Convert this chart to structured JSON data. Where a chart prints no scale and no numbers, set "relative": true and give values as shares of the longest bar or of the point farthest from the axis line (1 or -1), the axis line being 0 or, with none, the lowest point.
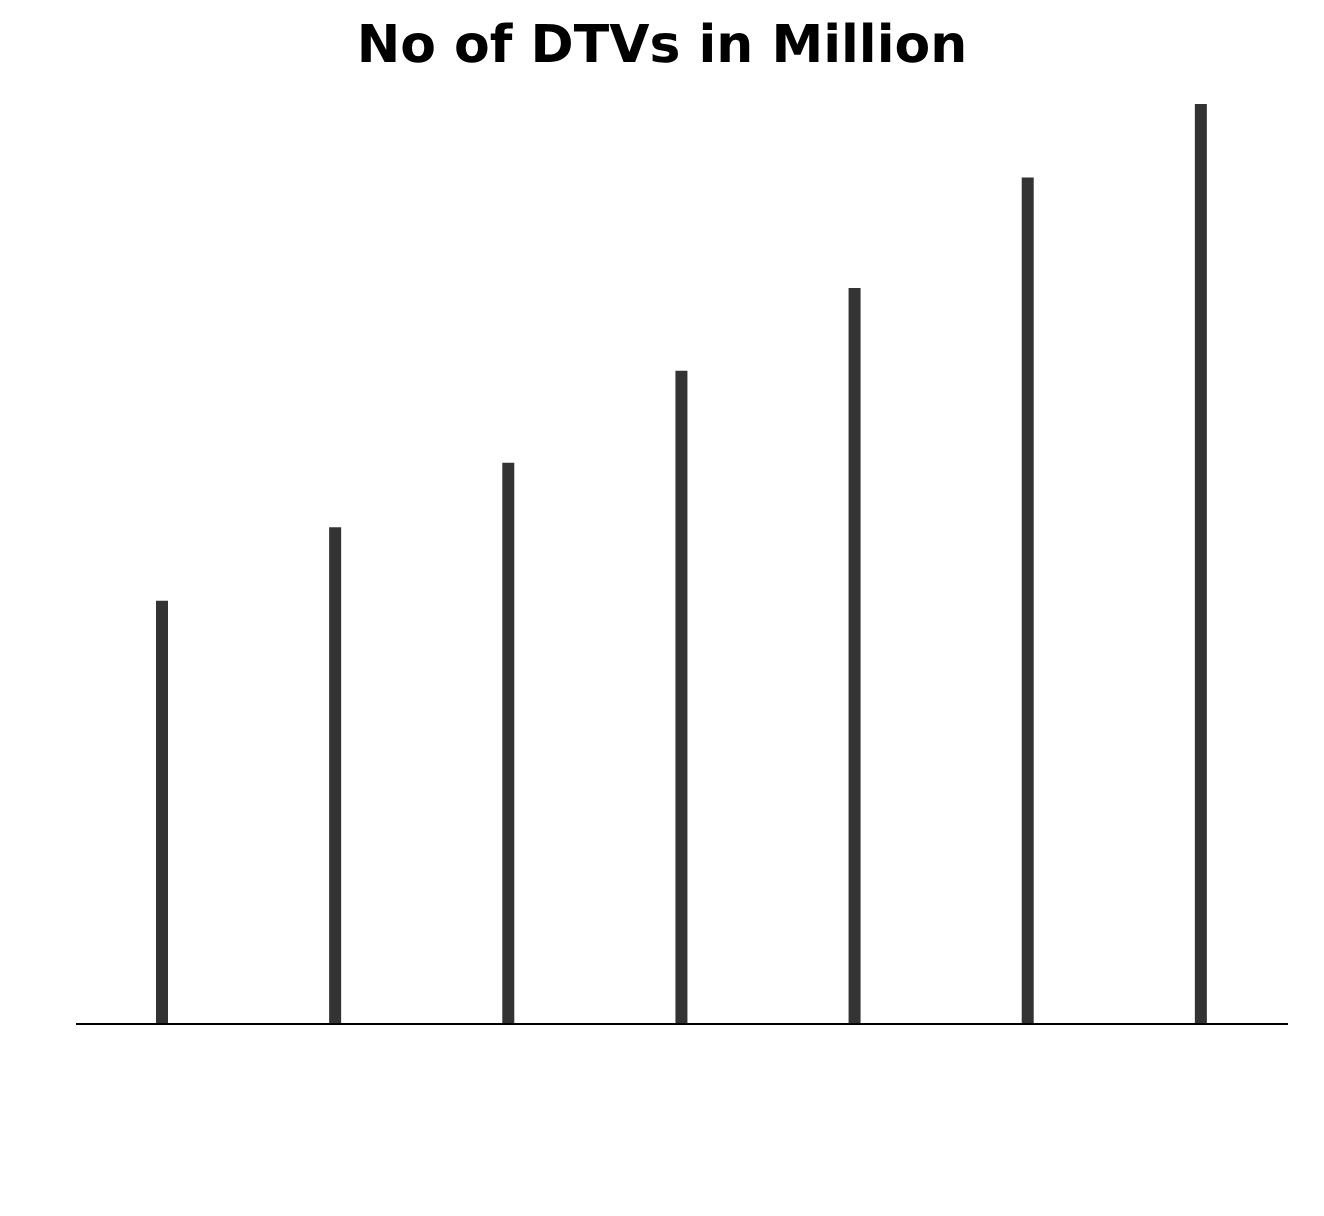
{
  "chart_data": {
    "type": "bar",
    "title": "No of DTVs in Million",
    "relative": true,
    "tick_labels": false,
    "categories": [
      null,
      null,
      null,
      null,
      null,
      null,
      null
    ],
    "values": [
      0.46,
      0.54,
      0.61,
      0.71,
      0.8,
      0.92,
      1
    ],
    "color": "#333333"
  }
}
